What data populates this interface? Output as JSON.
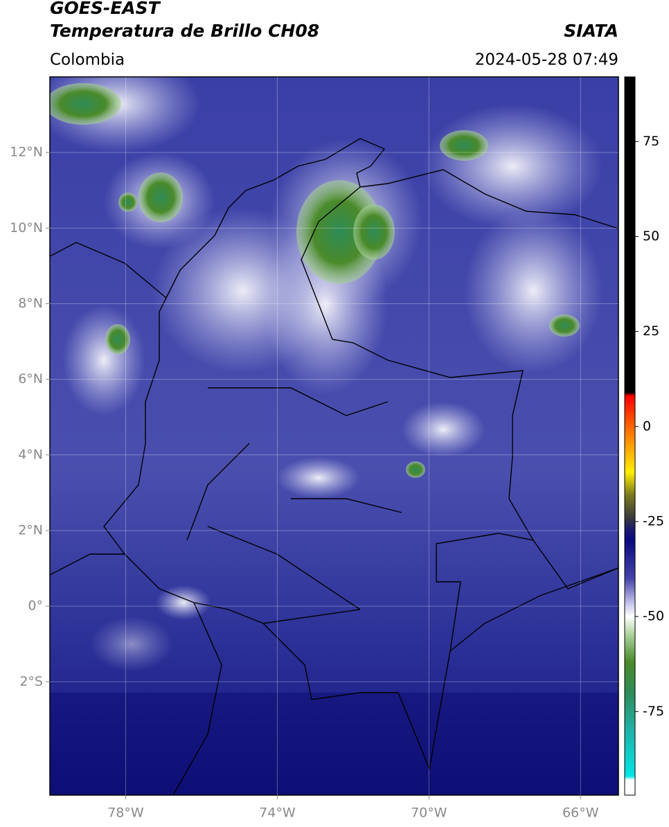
{
  "chart_data": {
    "type": "map",
    "title": "GOES-EAST",
    "subtitle": "Temperatura de Brillo CH08",
    "source": "SIATA",
    "region": "Colombia",
    "date": "2024-05-28 07:49",
    "xlim": [
      -80,
      -65
    ],
    "ylim": [
      -5,
      14
    ],
    "xticks": [
      {
        "value": -78,
        "label": "78°W"
      },
      {
        "value": -74,
        "label": "74°W"
      },
      {
        "value": -70,
        "label": "70°W"
      },
      {
        "value": -66,
        "label": "66°W"
      }
    ],
    "yticks": [
      {
        "value": 12,
        "label": "12°N"
      },
      {
        "value": 10,
        "label": "10°N"
      },
      {
        "value": 8,
        "label": "8°N"
      },
      {
        "value": 6,
        "label": "6°N"
      },
      {
        "value": 4,
        "label": "4°N"
      },
      {
        "value": 2,
        "label": "2°N"
      },
      {
        "value": 0,
        "label": "0°"
      },
      {
        "value": -2,
        "label": "2°S"
      }
    ],
    "grid": true,
    "colorbar": {
      "lim": [
        -97,
        92
      ],
      "ticks": [
        75,
        50,
        25,
        0,
        -25,
        -50,
        -75
      ],
      "stops": [
        {
          "value": 92,
          "color": "#000000"
        },
        {
          "value": 9,
          "color": "#000000"
        },
        {
          "value": 8,
          "color": "#ff0000"
        },
        {
          "value": 0,
          "color": "#ff6600"
        },
        {
          "value": -12,
          "color": "#ffee00"
        },
        {
          "value": -18,
          "color": "#7a7a20"
        },
        {
          "value": -24,
          "color": "#3a3a3a"
        },
        {
          "value": -27,
          "color": "#1a1a6e"
        },
        {
          "value": -30,
          "color": "#0a0a80"
        },
        {
          "value": -40,
          "color": "#4444aa"
        },
        {
          "value": -47,
          "color": "#ccccee"
        },
        {
          "value": -50,
          "color": "#ffffff"
        },
        {
          "value": -55,
          "color": "#a8d098"
        },
        {
          "value": -62,
          "color": "#4a8a2a"
        },
        {
          "value": -70,
          "color": "#2e8b57"
        },
        {
          "value": -80,
          "color": "#20b2aa"
        },
        {
          "value": -92,
          "color": "#00e5e5"
        },
        {
          "value": -93,
          "color": "#ffffff"
        },
        {
          "value": -97,
          "color": "#ffffff"
        }
      ]
    }
  }
}
